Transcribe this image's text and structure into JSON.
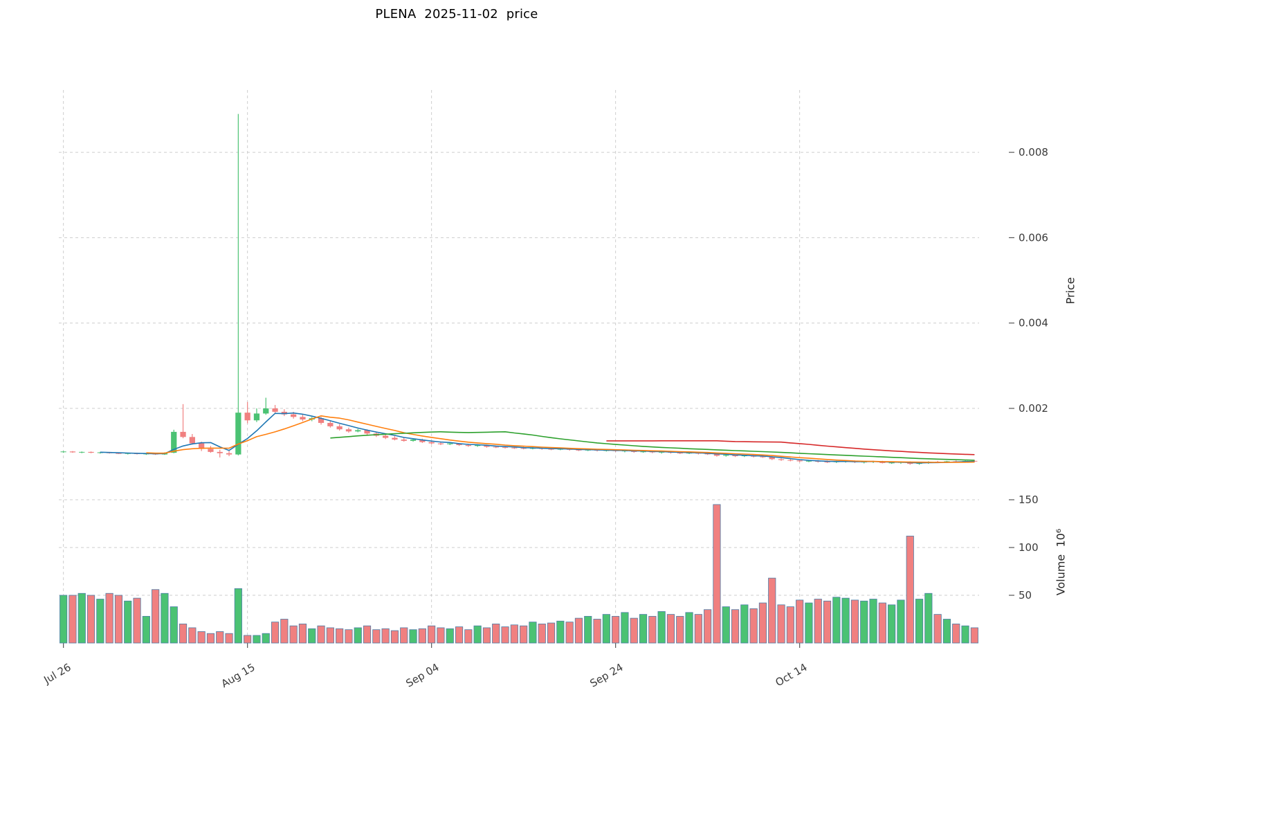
{
  "colors": {
    "up": "#4bc273",
    "down": "#f08080",
    "grid": "#cccccc",
    "tick": "#555555",
    "tick_text": "#3a3a3a",
    "title_text": "#000000",
    "volume_edge": "#4d7ea8"
  },
  "chart_data": [
    {
      "type": "candlestick",
      "title": "PLENA  2025-11-02  price",
      "ylabel": "Price",
      "ylim": [
        0.0002,
        0.0095
      ],
      "grid": true,
      "legend": "none",
      "y_ticks": [
        "0.002",
        "0.004",
        "0.006",
        "0.008"
      ],
      "x_ticks": [
        {
          "index": 0,
          "label": "Jul 26"
        },
        {
          "index": 20,
          "label": "Aug 15"
        },
        {
          "index": 40,
          "label": "Sep 04"
        },
        {
          "index": 60,
          "label": "Sep 24"
        },
        {
          "index": 80,
          "label": "Oct 14"
        }
      ],
      "moving_averages": [
        {
          "period": 5,
          "color": "#1f77b4"
        },
        {
          "period": 10,
          "color": "#ff7f0e"
        },
        {
          "period": 30,
          "color": "#2ca02c"
        },
        {
          "period": 60,
          "color": "#d62728"
        }
      ],
      "open": [
        0.00098,
        0.00099,
        0.00097,
        0.00098,
        0.00096,
        0.00097,
        0.00095,
        0.00094,
        0.00095,
        0.00093,
        0.00094,
        0.00092,
        0.00096,
        0.00145,
        0.00133,
        0.00118,
        0.00105,
        0.00098,
        0.00095,
        0.00092,
        0.0019,
        0.00172,
        0.00188,
        0.002,
        0.00192,
        0.00186,
        0.0018,
        0.00174,
        0.00177,
        0.00166,
        0.00158,
        0.00151,
        0.00146,
        0.00149,
        0.00141,
        0.00136,
        0.00131,
        0.00127,
        0.00124,
        0.00127,
        0.00121,
        0.00118,
        0.00116,
        0.00118,
        0.00114,
        0.00112,
        0.00114,
        0.0011,
        0.00109,
        0.00108,
        0.00107,
        0.00106,
        0.00107,
        0.00105,
        0.00104,
        0.00105,
        0.00103,
        0.00102,
        0.00103,
        0.00101,
        0.00102,
        0.001,
        0.00101,
        0.00098,
        0.00099,
        0.00097,
        0.00098,
        0.00096,
        0.00095,
        0.00096,
        0.00094,
        0.00093,
        0.00089,
        0.00091,
        0.00088,
        0.0009,
        0.00087,
        0.00086,
        0.00081,
        0.00079,
        0.00078,
        0.00076,
        0.00077,
        0.00075,
        0.00074,
        0.00076,
        0.00077,
        0.00074,
        0.00075,
        0.00076,
        0.00072,
        0.00073,
        0.00074,
        0.0007,
        0.00072,
        0.00075,
        0.00074,
        0.00076,
        0.00075,
        0.00077
      ],
      "high": [
        0.001,
        0.001,
        0.00099,
        0.00099,
        0.00098,
        0.00098,
        0.00097,
        0.00096,
        0.00096,
        0.00095,
        0.00095,
        0.00097,
        0.0015,
        0.0021,
        0.0014,
        0.00122,
        0.00112,
        0.00103,
        0.001,
        0.0089,
        0.00215,
        0.002,
        0.00225,
        0.00208,
        0.00198,
        0.00192,
        0.00186,
        0.0018,
        0.0018,
        0.0017,
        0.00163,
        0.00155,
        0.00152,
        0.00151,
        0.00145,
        0.0014,
        0.00135,
        0.00131,
        0.00129,
        0.00129,
        0.00124,
        0.00121,
        0.0012,
        0.00119,
        0.00117,
        0.00116,
        0.00115,
        0.00113,
        0.00112,
        0.00111,
        0.0011,
        0.00109,
        0.00108,
        0.00108,
        0.00107,
        0.00106,
        0.00106,
        0.00105,
        0.00104,
        0.00104,
        0.00103,
        0.00103,
        0.00102,
        0.00101,
        0.001,
        0.001,
        0.00099,
        0.00098,
        0.00098,
        0.00097,
        0.00096,
        0.00095,
        0.00093,
        0.00092,
        0.00091,
        0.00091,
        0.00089,
        0.00088,
        0.00083,
        0.00082,
        0.0008,
        0.00079,
        0.00079,
        0.00078,
        0.00077,
        0.00078,
        0.00078,
        0.00076,
        0.00077,
        0.00077,
        0.00075,
        0.00076,
        0.00076,
        0.00074,
        0.00076,
        0.00077,
        0.00077,
        0.00078,
        0.00078,
        0.00079
      ],
      "low": [
        0.00096,
        0.00096,
        0.00095,
        0.00095,
        0.00094,
        0.00094,
        0.00093,
        0.00092,
        0.00092,
        0.00091,
        0.00091,
        0.00091,
        0.00095,
        0.0013,
        0.00115,
        0.001,
        0.00096,
        0.00085,
        0.00088,
        0.0009,
        0.00165,
        0.00168,
        0.00185,
        0.00188,
        0.00182,
        0.00176,
        0.0017,
        0.0017,
        0.00162,
        0.00155,
        0.00148,
        0.00143,
        0.00144,
        0.00138,
        0.00133,
        0.00128,
        0.00125,
        0.00122,
        0.00122,
        0.00119,
        0.00116,
        0.00114,
        0.00114,
        0.00112,
        0.0011,
        0.0011,
        0.00108,
        0.00107,
        0.00106,
        0.00105,
        0.00104,
        0.00104,
        0.00103,
        0.00102,
        0.00102,
        0.00101,
        0.001,
        0.001,
        0.00099,
        0.00099,
        0.00098,
        0.00097,
        0.00096,
        0.00096,
        0.00095,
        0.00094,
        0.00094,
        0.00093,
        0.00093,
        0.00092,
        0.00091,
        0.00087,
        0.00087,
        0.00086,
        0.00086,
        0.00085,
        0.00084,
        0.00079,
        0.00077,
        0.00076,
        0.00074,
        0.00074,
        0.00073,
        0.00072,
        0.00072,
        0.00073,
        0.00072,
        0.00071,
        0.00072,
        0.00071,
        0.0007,
        0.0007,
        0.00068,
        0.00068,
        0.0007,
        0.00072,
        0.00072,
        0.00073,
        0.00073,
        0.00074
      ],
      "close": [
        0.00099,
        0.00097,
        0.00098,
        0.00096,
        0.00097,
        0.00095,
        0.00094,
        0.00095,
        0.00093,
        0.00094,
        0.00092,
        0.00096,
        0.00145,
        0.00133,
        0.00118,
        0.00105,
        0.00098,
        0.00095,
        0.00092,
        0.0019,
        0.00172,
        0.00188,
        0.002,
        0.00192,
        0.00186,
        0.0018,
        0.00174,
        0.00177,
        0.00166,
        0.00158,
        0.00151,
        0.00146,
        0.00149,
        0.00141,
        0.00136,
        0.00131,
        0.00127,
        0.00124,
        0.00127,
        0.00121,
        0.00118,
        0.00116,
        0.00118,
        0.00114,
        0.00112,
        0.00114,
        0.0011,
        0.00109,
        0.00108,
        0.00107,
        0.00106,
        0.00107,
        0.00105,
        0.00104,
        0.00105,
        0.00103,
        0.00102,
        0.00103,
        0.00101,
        0.00102,
        0.001,
        0.00101,
        0.00098,
        0.00099,
        0.00097,
        0.00098,
        0.00096,
        0.00095,
        0.00096,
        0.00094,
        0.00093,
        0.00089,
        0.00091,
        0.00088,
        0.0009,
        0.00087,
        0.00086,
        0.00081,
        0.00079,
        0.00078,
        0.00076,
        0.00077,
        0.00075,
        0.00074,
        0.00076,
        0.00077,
        0.00074,
        0.00075,
        0.00076,
        0.00072,
        0.00073,
        0.00074,
        0.0007,
        0.00072,
        0.00075,
        0.00074,
        0.00076,
        0.00075,
        0.00077,
        0.00076
      ]
    },
    {
      "type": "bar",
      "ylabel": "Volume  10⁶",
      "unit_label": "10⁶",
      "ylim": [
        0,
        160
      ],
      "grid": true,
      "y_ticks": [
        50,
        100,
        150
      ],
      "color_rule": "green if close >= open else red (matches candle of same day)",
      "values": [
        50,
        50,
        52,
        50,
        46,
        52,
        50,
        44,
        47,
        28,
        56,
        52,
        38,
        20,
        16,
        12,
        10,
        12,
        10,
        57,
        8,
        8,
        10,
        22,
        25,
        18,
        20,
        15,
        18,
        16,
        15,
        14,
        16,
        18,
        14,
        15,
        13,
        16,
        14,
        15,
        18,
        16,
        15,
        17,
        14,
        18,
        16,
        20,
        17,
        19,
        18,
        22,
        20,
        21,
        23,
        22,
        26,
        28,
        25,
        30,
        28,
        32,
        26,
        30,
        28,
        33,
        30,
        28,
        32,
        30,
        35,
        145,
        38,
        35,
        40,
        36,
        42,
        68,
        40,
        38,
        45,
        42,
        46,
        44,
        48,
        47,
        45,
        44,
        46,
        42,
        40,
        45,
        112,
        46,
        52,
        30,
        25,
        20,
        18,
        16
      ]
    }
  ]
}
